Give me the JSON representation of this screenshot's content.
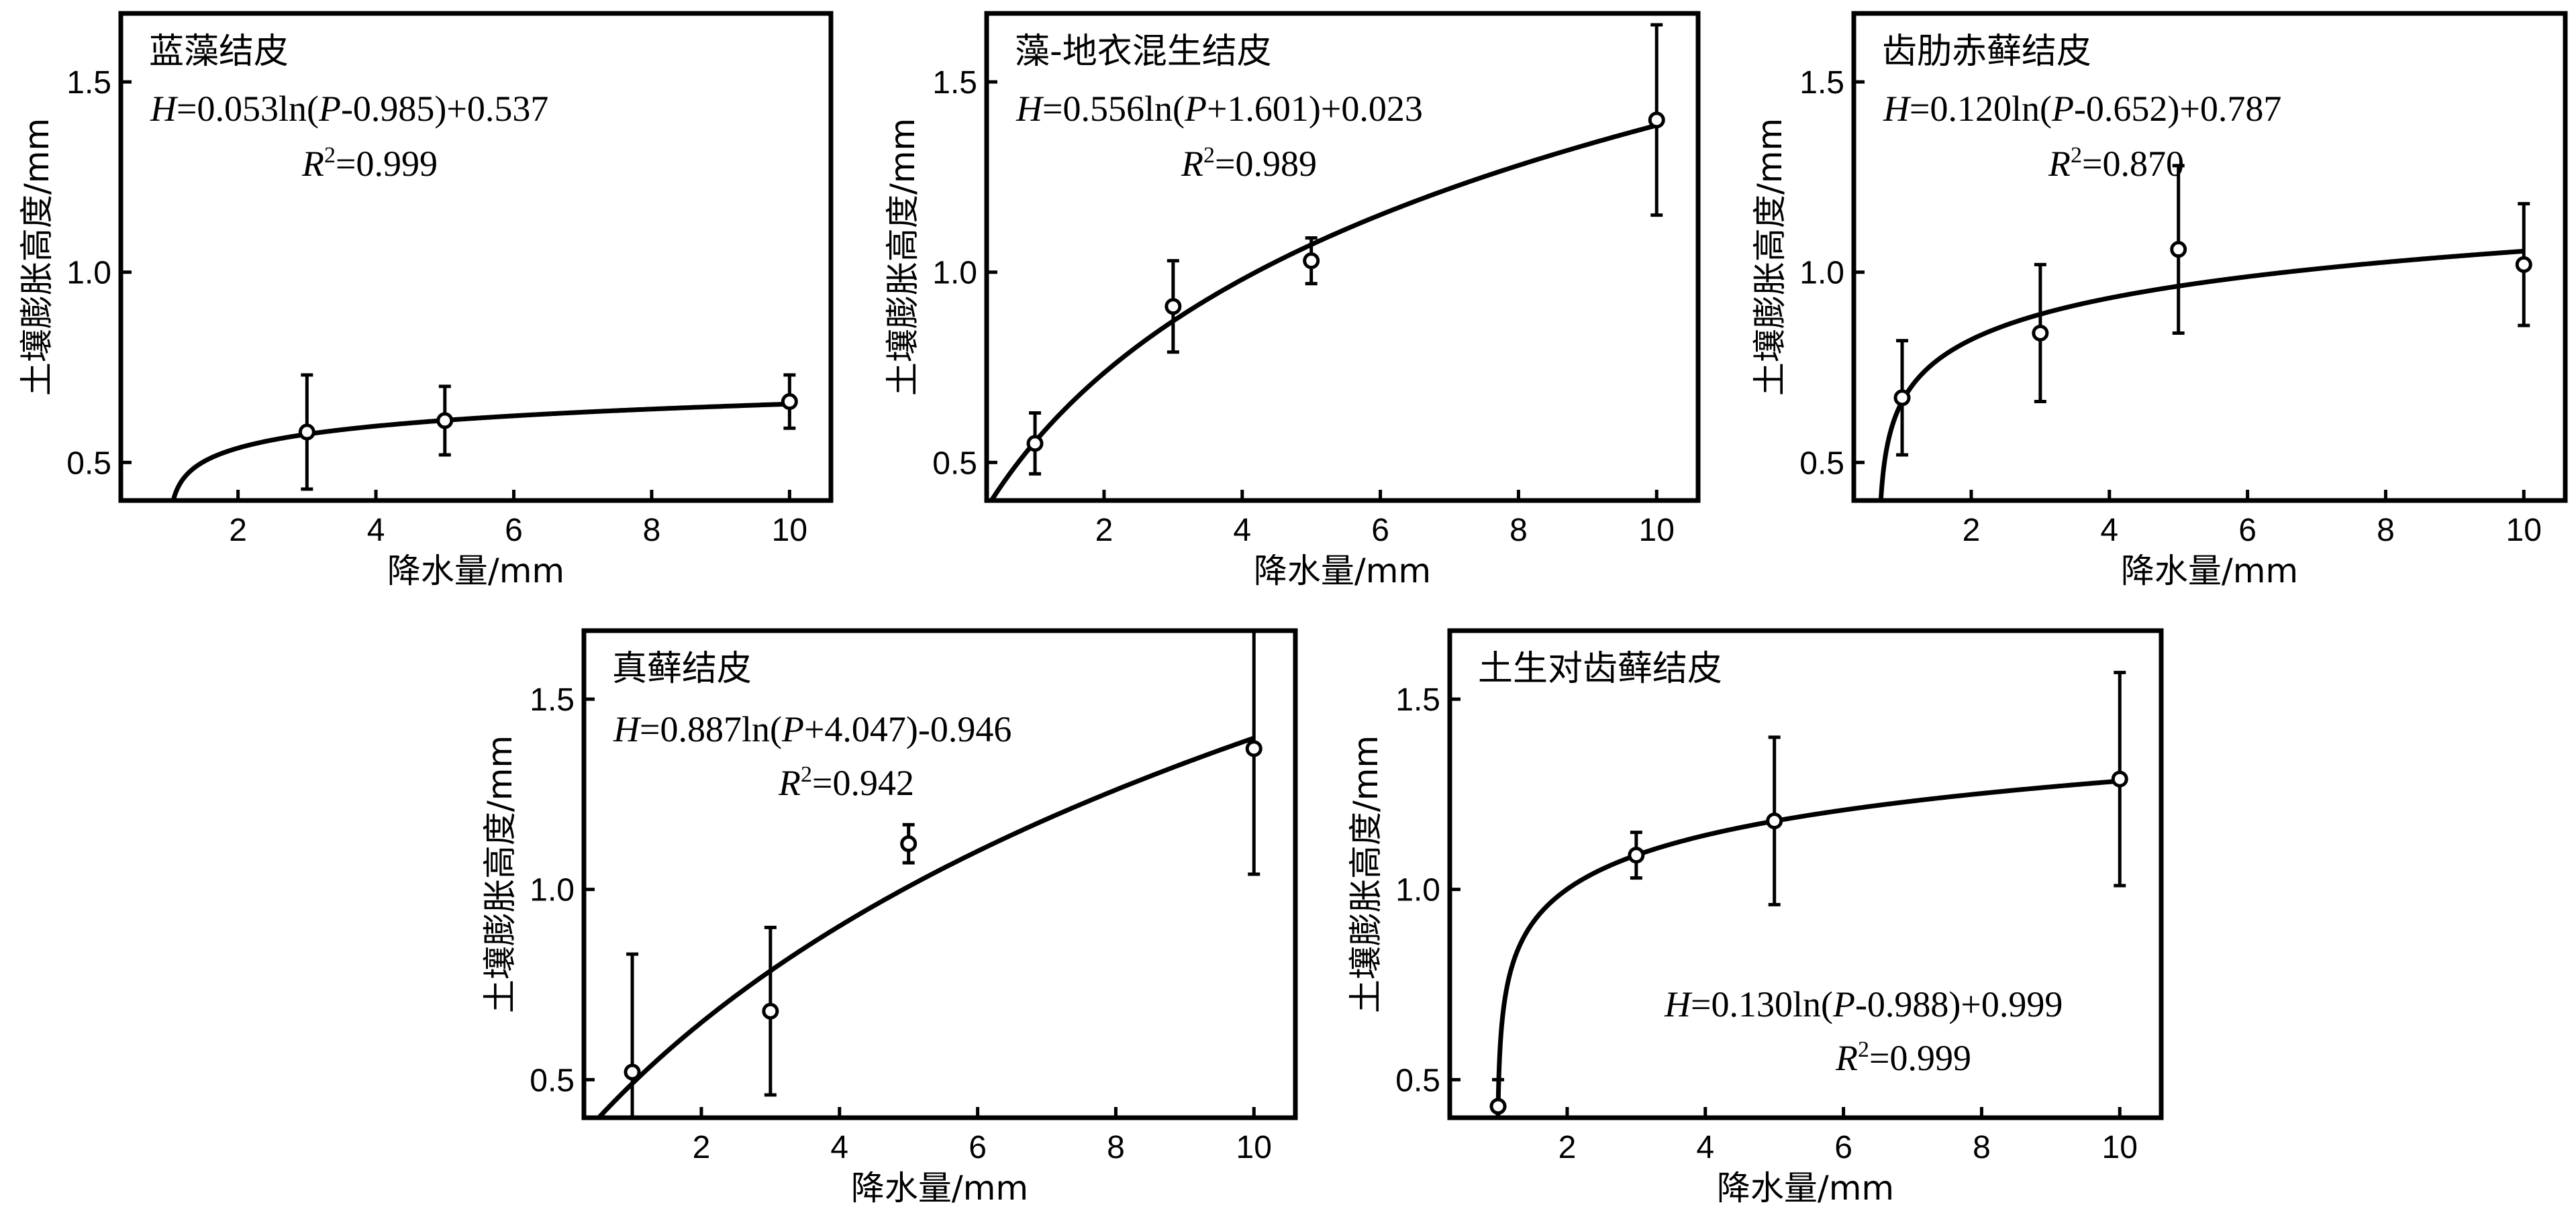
{
  "common": {
    "ylabel": "土壤膨胀高度/mm",
    "xlabel": "降水量/mm"
  },
  "chart_data": [
    {
      "type": "scatter",
      "title": "蓝藻结皮",
      "equation": {
        "a": "0.053",
        "op": "-",
        "b": "0.985",
        "c": "+0.537"
      },
      "r2": "0.999",
      "fit": {
        "a": 0.053,
        "b": -0.985,
        "c": 0.537
      },
      "x": [
        3,
        5,
        10
      ],
      "y": [
        0.58,
        0.61,
        0.66
      ],
      "err": [
        0.15,
        0.09,
        0.07
      ],
      "xlim": [
        0.3,
        10.6
      ],
      "ylim": [
        0.4,
        1.68
      ],
      "xticks": [
        2,
        4,
        6,
        8,
        10
      ],
      "yticks": [
        0.5,
        1.0,
        1.5
      ],
      "xlabel": "降水量/mm",
      "ylabel": "土壤膨胀高度/mm"
    },
    {
      "type": "scatter",
      "title": "藻-地衣混生结皮",
      "equation": {
        "a": "0.556",
        "op": "+",
        "b": "1.601",
        "c": "+0.023"
      },
      "r2": "0.989",
      "fit": {
        "a": 0.556,
        "b": 1.601,
        "c": 0.023
      },
      "x": [
        1,
        3,
        5,
        10
      ],
      "y": [
        0.55,
        0.91,
        1.03,
        1.4
      ],
      "err": [
        0.08,
        0.12,
        0.06,
        0.25
      ],
      "xlim": [
        0.3,
        10.6
      ],
      "ylim": [
        0.4,
        1.68
      ],
      "xticks": [
        2,
        4,
        6,
        8,
        10
      ],
      "yticks": [
        0.5,
        1.0,
        1.5
      ],
      "xlabel": "降水量/mm",
      "ylabel": "土壤膨胀高度/mm"
    },
    {
      "type": "scatter",
      "title": "齿肋赤藓结皮",
      "equation": {
        "a": "0.120",
        "op": "-",
        "b": "0.652",
        "c": "+0.787"
      },
      "r2": "0.870",
      "fit": {
        "a": 0.12,
        "b": -0.652,
        "c": 0.787
      },
      "x": [
        1,
        3,
        5,
        10
      ],
      "y": [
        0.67,
        0.84,
        1.06,
        1.02
      ],
      "err": [
        0.15,
        0.18,
        0.22,
        0.16
      ],
      "xlim": [
        0.3,
        10.6
      ],
      "ylim": [
        0.4,
        1.68
      ],
      "xticks": [
        2,
        4,
        6,
        8,
        10
      ],
      "yticks": [
        0.5,
        1.0,
        1.5
      ],
      "xlabel": "降水量/mm",
      "ylabel": "土壤膨胀高度/mm"
    },
    {
      "type": "scatter",
      "title": "真藓结皮",
      "equation": {
        "a": "0.887",
        "op": "+",
        "b": "4.047",
        "c": "-0.946"
      },
      "r2": "0.942",
      "fit": {
        "a": 0.887,
        "b": 4.047,
        "c": -0.946
      },
      "x": [
        1,
        3,
        5,
        10
      ],
      "y": [
        0.52,
        0.68,
        1.12,
        1.37
      ],
      "err": [
        0.31,
        0.22,
        0.05,
        0.33
      ],
      "xlim": [
        0.3,
        10.6
      ],
      "ylim": [
        0.4,
        1.68
      ],
      "xticks": [
        2,
        4,
        6,
        8,
        10
      ],
      "yticks": [
        0.5,
        1.0,
        1.5
      ],
      "xlabel": "降水量/mm",
      "ylabel": "土壤膨胀高度/mm"
    },
    {
      "type": "scatter",
      "title": "土生对齿藓结皮",
      "equation": {
        "a": "0.130",
        "op": "-",
        "b": "0.988",
        "c": "+0.999"
      },
      "r2": "0.999",
      "fit": {
        "a": 0.13,
        "b": -0.988,
        "c": 0.999
      },
      "x": [
        1,
        3,
        5,
        10
      ],
      "y": [
        0.43,
        1.09,
        1.18,
        1.29
      ],
      "err": [
        0.07,
        0.06,
        0.22,
        0.28
      ],
      "xlim": [
        0.3,
        10.6
      ],
      "ylim": [
        0.4,
        1.68
      ],
      "xticks": [
        2,
        4,
        6,
        8,
        10
      ],
      "yticks": [
        0.5,
        1.0,
        1.5
      ],
      "xlabel": "降水量/mm",
      "ylabel": "土壤膨胀高度/mm"
    }
  ]
}
